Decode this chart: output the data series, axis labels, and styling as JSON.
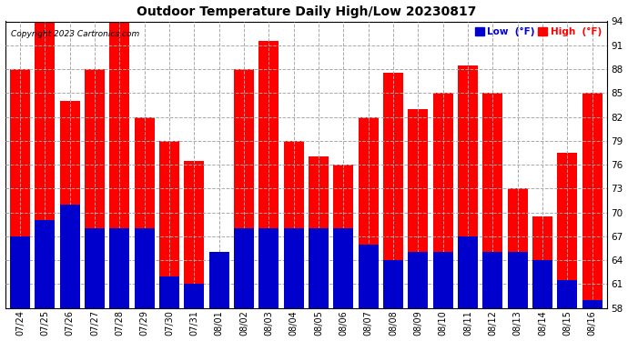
{
  "title": "Outdoor Temperature Daily High/Low 20230817",
  "copyright": "Copyright 2023 Cartronics.com",
  "legend_low_label": "Low  (°F)",
  "legend_high_label": "High  (°F)",
  "legend_low_color": "#0000cc",
  "legend_high_color": "#ff0000",
  "bar_low_color": "#0000cc",
  "bar_high_color": "#ff0000",
  "background_color": "#ffffff",
  "grid_color": "#aaaaaa",
  "ymin": 58.0,
  "ymax": 94.0,
  "yticks": [
    58.0,
    61.0,
    64.0,
    67.0,
    70.0,
    73.0,
    76.0,
    79.0,
    82.0,
    85.0,
    88.0,
    91.0,
    94.0
  ],
  "dates": [
    "07/24",
    "07/25",
    "07/26",
    "07/27",
    "07/28",
    "07/29",
    "07/30",
    "07/31",
    "08/01",
    "08/02",
    "08/03",
    "08/04",
    "08/05",
    "08/06",
    "08/07",
    "08/08",
    "08/09",
    "08/10",
    "08/11",
    "08/12",
    "08/13",
    "08/14",
    "08/15",
    "08/16"
  ],
  "highs": [
    88.0,
    94.0,
    84.0,
    88.0,
    94.0,
    82.0,
    79.0,
    76.5,
    63.0,
    88.0,
    91.5,
    79.0,
    77.0,
    76.0,
    82.0,
    87.5,
    83.0,
    85.0,
    88.5,
    85.0,
    73.0,
    69.5,
    77.5,
    85.0
  ],
  "lows": [
    67.0,
    69.0,
    71.0,
    68.0,
    68.0,
    68.0,
    62.0,
    61.0,
    65.0,
    68.0,
    68.0,
    68.0,
    68.0,
    68.0,
    66.0,
    64.0,
    65.0,
    65.0,
    67.0,
    65.0,
    65.0,
    64.0,
    61.5,
    59.0
  ]
}
